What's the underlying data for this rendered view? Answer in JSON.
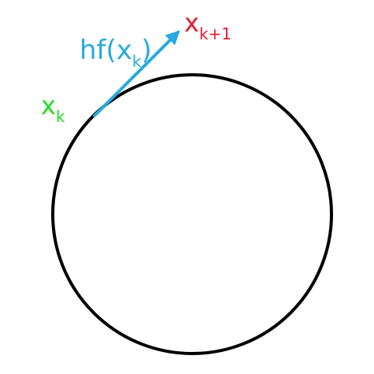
{
  "colors": {
    "circle": "#000000",
    "step_vector": "#29a9df",
    "current_point": "#22dd22",
    "next_point": "#e8192f",
    "background": "#ffffff"
  },
  "labels": {
    "current_point": {
      "base": "x",
      "sub": "k"
    },
    "next_point": {
      "base": "x",
      "sub": "k+1"
    },
    "step": {
      "prefix": "hf(",
      "base": "x",
      "sub": "k",
      "suffix": ")"
    }
  }
}
